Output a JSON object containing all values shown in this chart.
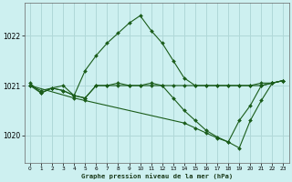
{
  "title": "Graphe pression niveau de la mer (hPa)",
  "bg_color": "#cdf0f0",
  "grid_color": "#b0d8d8",
  "line_color": "#1a5c1a",
  "marker_color": "#1a5c1a",
  "xlim": [
    -0.5,
    23.5
  ],
  "ylim": [
    1019.45,
    1022.65
  ],
  "yticks": [
    1020,
    1021,
    1022
  ],
  "xticks": [
    0,
    1,
    2,
    3,
    4,
    5,
    6,
    7,
    8,
    9,
    10,
    11,
    12,
    13,
    14,
    15,
    16,
    17,
    18,
    19,
    20,
    21,
    22,
    23
  ],
  "series": [
    {
      "x": [
        0,
        1,
        2,
        3,
        4,
        5,
        6,
        7,
        8,
        9,
        10,
        11,
        12,
        13,
        14,
        15,
        16,
        17,
        18,
        19,
        20,
        21,
        22,
        23
      ],
      "y": [
        1021.0,
        1020.85,
        1020.95,
        1021.0,
        1020.8,
        1021.3,
        1021.6,
        1021.85,
        1022.05,
        1022.25,
        1022.4,
        1022.1,
        1021.85,
        1021.5,
        1021.15,
        1021.0,
        1021.0,
        1021.0,
        1021.0,
        1021.0,
        1021.0,
        1021.0,
        1021.05,
        1021.1
      ]
    },
    {
      "x": [
        0,
        1,
        2,
        3,
        4,
        5,
        6,
        7,
        8,
        9,
        10,
        11,
        12,
        13,
        14,
        15,
        16,
        17,
        18,
        19,
        20,
        21,
        22,
        23
      ],
      "y": [
        1021.0,
        1020.9,
        1020.95,
        1020.9,
        1020.8,
        1020.75,
        1021.0,
        1021.0,
        1021.0,
        1021.0,
        1021.0,
        1021.0,
        1021.0,
        1020.75,
        1020.5,
        1020.3,
        1020.1,
        1019.97,
        1019.87,
        1020.3,
        1020.6,
        1021.0,
        1021.05,
        1021.1
      ]
    },
    {
      "x": [
        0,
        4,
        5,
        14,
        15,
        16,
        17,
        18,
        19,
        20,
        21,
        22,
        23
      ],
      "y": [
        1021.0,
        1020.75,
        1020.7,
        1020.25,
        1020.15,
        1020.05,
        1019.95,
        1019.87,
        1019.75,
        1020.3,
        1020.7,
        1021.05,
        1021.1
      ]
    },
    {
      "x": [
        0,
        1,
        2,
        3,
        4,
        5,
        6,
        7,
        8,
        9,
        10,
        11,
        12,
        13,
        14,
        15,
        16,
        17,
        18,
        19,
        20,
        21,
        22,
        23
      ],
      "y": [
        1021.05,
        1020.85,
        1020.95,
        1020.9,
        1020.8,
        1020.75,
        1021.0,
        1021.0,
        1021.05,
        1021.0,
        1021.0,
        1021.05,
        1021.0,
        1021.0,
        1021.0,
        1021.0,
        1021.0,
        1021.0,
        1021.0,
        1021.0,
        1021.0,
        1021.05,
        1021.05,
        1021.1
      ]
    }
  ]
}
